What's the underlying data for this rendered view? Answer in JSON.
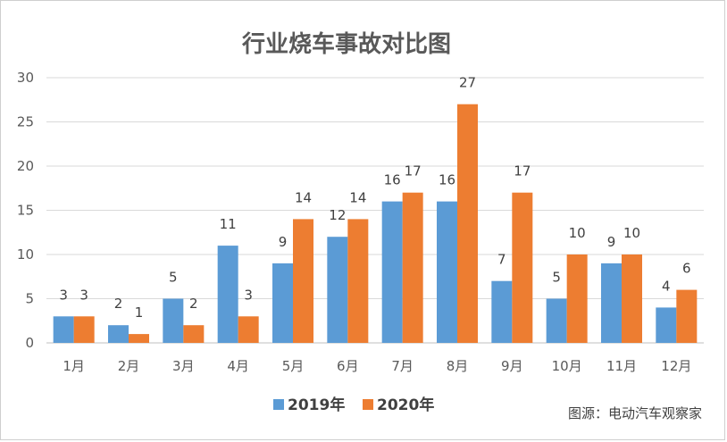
{
  "chart_data": {
    "type": "bar",
    "title": "行业烧车事故对比图",
    "categories": [
      "1月",
      "2月",
      "3月",
      "4月",
      "5月",
      "6月",
      "7月",
      "8月",
      "9月",
      "10月",
      "11月",
      "12月"
    ],
    "series": [
      {
        "name": "2019年",
        "color": "#5b9bd5",
        "values": [
          3,
          2,
          5,
          11,
          9,
          12,
          16,
          16,
          7,
          5,
          9,
          4
        ]
      },
      {
        "name": "2020年",
        "color": "#ed7d31",
        "values": [
          3,
          1,
          2,
          3,
          14,
          14,
          17,
          27,
          17,
          10,
          10,
          6
        ]
      }
    ],
    "ylim": [
      0,
      30
    ],
    "yticks": [
      0,
      5,
      10,
      15,
      20,
      25,
      30
    ],
    "grid": true,
    "legend_position": "bottom"
  },
  "source": "图源：电动汽车观察家"
}
